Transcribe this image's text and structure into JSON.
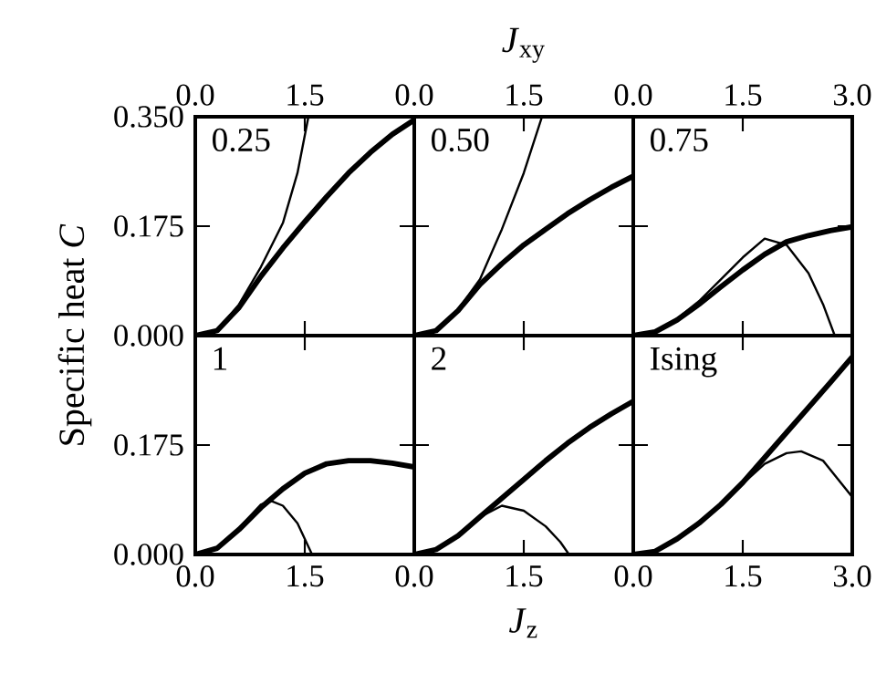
{
  "chart_data": [
    {
      "type": "line",
      "annotations": [
        "0.25"
      ],
      "ylabel": "Specific heat *C*",
      "xlim": [
        0,
        3
      ],
      "xticks": [
        {
          "value": 0,
          "label": "0.0"
        },
        {
          "value": 1.5,
          "label": "1.5"
        },
        {
          "value": 3,
          "label": null
        }
      ],
      "ylim": [
        0,
        0.35
      ],
      "yticks": [
        {
          "value": 0,
          "label": "0.000"
        },
        {
          "value": 0.175,
          "label": "0.175"
        },
        {
          "value": 0.35,
          "label": "0.350"
        }
      ],
      "series": [
        {
          "color": "#000000",
          "x": [
            0,
            0.3,
            0.6,
            0.9,
            1.2,
            1.5,
            1.8,
            2.1,
            2.4,
            2.7,
            3.0
          ],
          "values": [
            0,
            0.008,
            0.045,
            0.095,
            0.14,
            0.182,
            0.222,
            0.26,
            0.293,
            0.322,
            0.345
          ]
        },
        {
          "color": "#000000",
          "x": [
            0,
            0.3,
            0.6,
            0.9,
            1.2,
            1.4,
            1.55
          ],
          "values": [
            0,
            0.008,
            0.05,
            0.11,
            0.18,
            0.26,
            0.35
          ]
        }
      ]
    },
    {
      "type": "line",
      "annotations": [
        "0.50"
      ],
      "xlabel": "*J*$_{xy}$",
      "xlim": [
        0,
        3
      ],
      "xticks": [
        {
          "value": 0,
          "label": "0.0"
        },
        {
          "value": 1.5,
          "label": "1.5"
        },
        {
          "value": 3,
          "label": null
        }
      ],
      "ylim": [
        0,
        0.35
      ],
      "yticks": [
        0,
        0.175,
        0.35
      ],
      "tick_labels": "x",
      "series": [
        {
          "color": "#000000",
          "x": [
            0,
            0.3,
            0.6,
            0.9,
            1.2,
            1.5,
            1.8,
            2.1,
            2.4,
            2.7,
            3.0
          ],
          "values": [
            0,
            0.008,
            0.04,
            0.082,
            0.115,
            0.145,
            0.17,
            0.195,
            0.217,
            0.237,
            0.255
          ]
        },
        {
          "color": "#000000",
          "x": [
            0,
            0.3,
            0.6,
            0.9,
            1.2,
            1.5,
            1.75
          ],
          "values": [
            0,
            0.008,
            0.042,
            0.09,
            0.17,
            0.26,
            0.35
          ]
        }
      ]
    },
    {
      "type": "line",
      "annotations": [
        "0.75"
      ],
      "xlim": [
        0,
        3
      ],
      "xticks": [
        {
          "value": 0,
          "label": "0.0"
        },
        {
          "value": 1.5,
          "label": "1.5"
        },
        {
          "value": 3,
          "label": "3.0"
        }
      ],
      "ylim": [
        0,
        0.35
      ],
      "yticks": [
        0,
        0.175,
        0.35
      ],
      "tick_labels": "x",
      "series": [
        {
          "color": "#000000",
          "x": [
            0,
            0.3,
            0.6,
            0.9,
            1.2,
            1.5,
            1.8,
            2.1,
            2.4,
            2.7,
            3.0
          ],
          "values": [
            0,
            0.006,
            0.025,
            0.05,
            0.078,
            0.105,
            0.13,
            0.15,
            0.16,
            0.168,
            0.174
          ]
        },
        {
          "color": "#000000",
          "x": [
            0,
            0.3,
            0.6,
            0.9,
            1.2,
            1.5,
            1.8,
            2.1,
            2.4,
            2.6,
            2.76
          ],
          "values": [
            0,
            0.006,
            0.027,
            0.055,
            0.09,
            0.125,
            0.155,
            0.145,
            0.1,
            0.05,
            0
          ]
        }
      ]
    },
    {
      "type": "line",
      "annotations": [
        "1"
      ],
      "xlim": [
        0,
        3
      ],
      "xticks": [
        {
          "value": 0,
          "label": "0.0"
        },
        {
          "value": 1.5,
          "label": "1.5"
        },
        {
          "value": 3,
          "label": null
        }
      ],
      "ylim": [
        0,
        0.35
      ],
      "yticks": [
        {
          "value": 0,
          "label": "0.000"
        },
        {
          "value": 0.175,
          "label": "0.175"
        },
        {
          "value": 0.35,
          "label": null
        }
      ],
      "series": [
        {
          "color": "#000000",
          "x": [
            0,
            0.3,
            0.6,
            0.9,
            1.2,
            1.5,
            1.8,
            2.1,
            2.4,
            2.7,
            3.0
          ],
          "values": [
            0,
            0.01,
            0.04,
            0.075,
            0.105,
            0.13,
            0.145,
            0.15,
            0.15,
            0.146,
            0.14
          ]
        },
        {
          "color": "#000000",
          "x": [
            0,
            0.3,
            0.6,
            0.9,
            1.05,
            1.2,
            1.4,
            1.6
          ],
          "values": [
            0,
            0.01,
            0.042,
            0.08,
            0.085,
            0.078,
            0.05,
            0
          ]
        }
      ]
    },
    {
      "type": "line",
      "annotations": [
        "2"
      ],
      "xlabel": "*J*$_{z}$",
      "xlim": [
        0,
        3
      ],
      "xticks": [
        {
          "value": 0,
          "label": "0.0"
        },
        {
          "value": 1.5,
          "label": "1.5"
        },
        {
          "value": 3,
          "label": null
        }
      ],
      "ylim": [
        0,
        0.35
      ],
      "yticks": [
        0,
        0.175,
        0.35
      ],
      "tick_labels": "x",
      "series": [
        {
          "color": "#000000",
          "x": [
            0,
            0.3,
            0.6,
            0.9,
            1.2,
            1.5,
            1.8,
            2.1,
            2.4,
            2.7,
            3.0
          ],
          "values": [
            0,
            0.008,
            0.03,
            0.06,
            0.09,
            0.12,
            0.15,
            0.178,
            0.203,
            0.225,
            0.245
          ]
        },
        {
          "color": "#000000",
          "x": [
            0,
            0.3,
            0.6,
            0.9,
            1.2,
            1.5,
            1.8,
            2.0,
            2.12
          ],
          "values": [
            0,
            0.008,
            0.03,
            0.06,
            0.078,
            0.07,
            0.045,
            0.02,
            0
          ]
        }
      ]
    },
    {
      "type": "line",
      "annotations": [
        "Ising"
      ],
      "xlim": [
        0,
        3
      ],
      "xticks": [
        {
          "value": 0,
          "label": "0.0"
        },
        {
          "value": 1.5,
          "label": "1.5"
        },
        {
          "value": 3,
          "label": "3.0"
        }
      ],
      "ylim": [
        0,
        0.35
      ],
      "yticks": [
        0,
        0.175,
        0.35
      ],
      "tick_labels": "x",
      "series": [
        {
          "color": "#000000",
          "x": [
            0,
            0.3,
            0.6,
            0.9,
            1.2,
            1.5,
            1.8,
            2.1,
            2.4,
            2.7,
            3.0
          ],
          "values": [
            0,
            0.005,
            0.025,
            0.05,
            0.08,
            0.115,
            0.155,
            0.195,
            0.235,
            0.275,
            0.316
          ]
        },
        {
          "color": "#000000",
          "x": [
            0,
            0.3,
            0.6,
            0.9,
            1.2,
            1.5,
            1.8,
            2.1,
            2.3,
            2.6,
            3.0
          ],
          "values": [
            0,
            0.005,
            0.025,
            0.05,
            0.08,
            0.113,
            0.145,
            0.162,
            0.165,
            0.15,
            0.092
          ]
        }
      ]
    }
  ]
}
